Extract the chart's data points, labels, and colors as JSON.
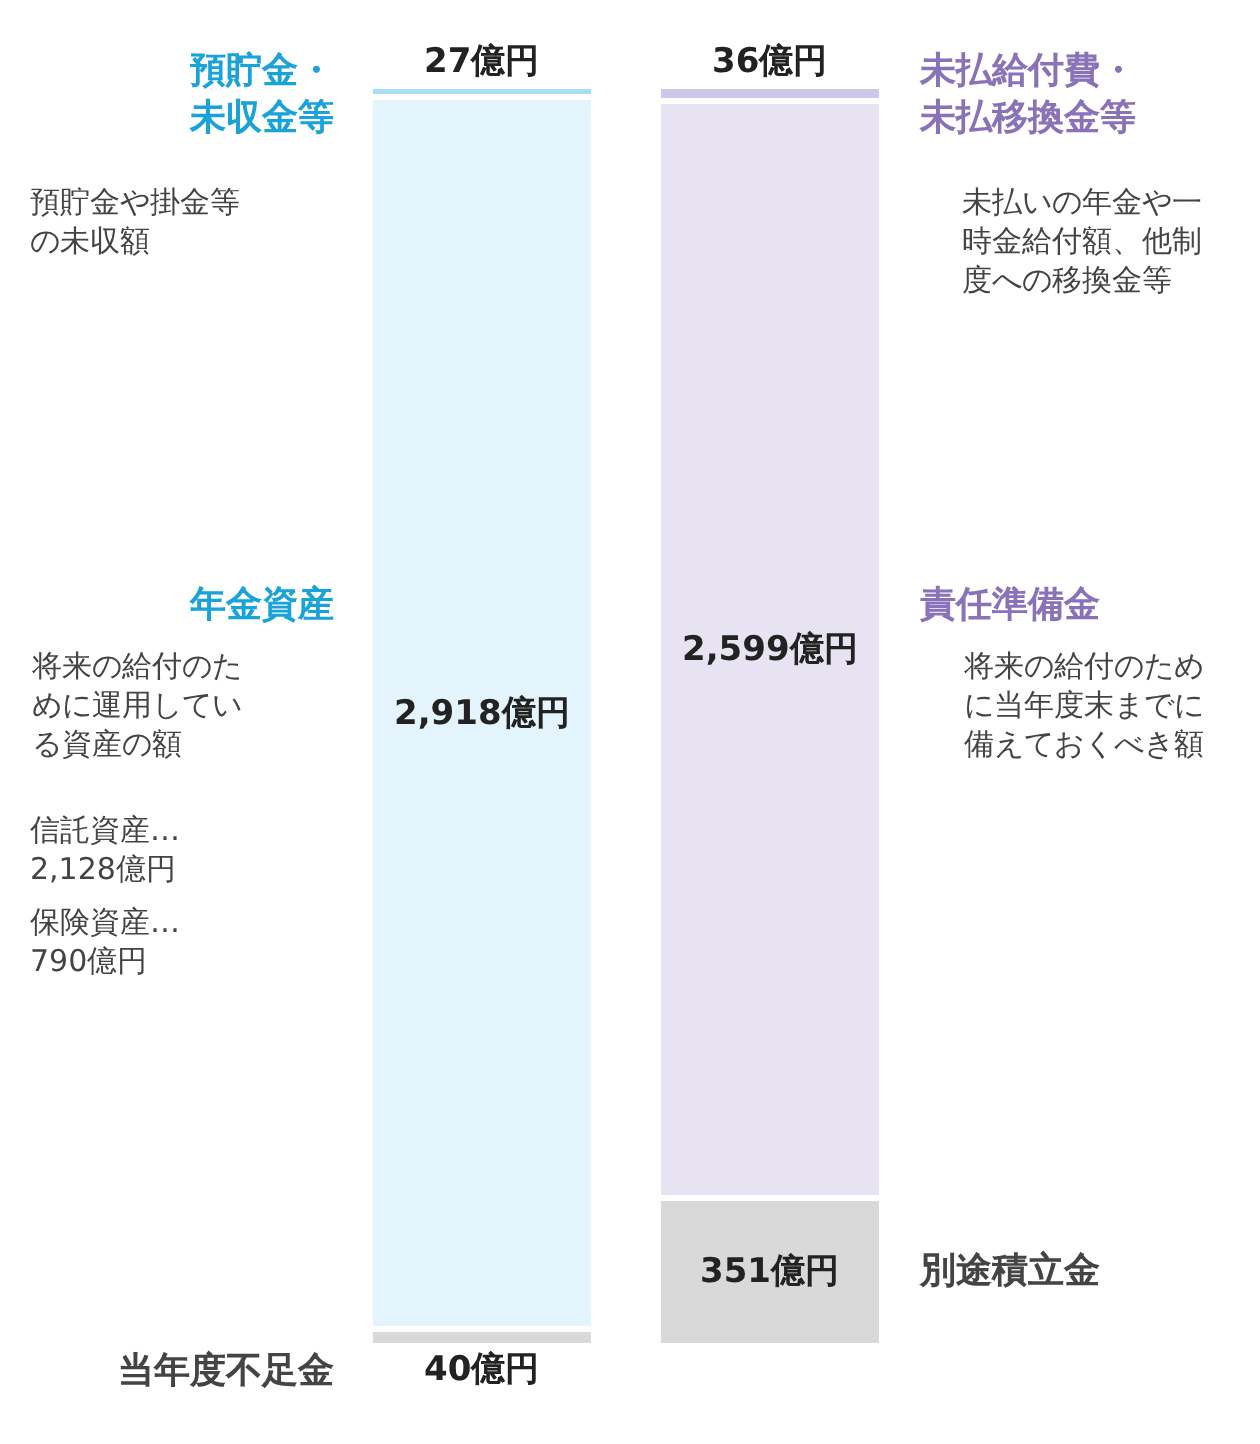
{
  "chart_data": {
    "type": "bar",
    "stacked": true,
    "legend": false,
    "tick_labels": false,
    "categories": [
      null,
      null
    ],
    "series": [
      {
        "name": "当年度不足金",
        "color": "#d9d9d9",
        "values": [
          40,
          null
        ],
        "value_labels": [
          "40億円",
          null
        ]
      },
      {
        "name": "別途積立金",
        "color": "#d9d9d9",
        "values": [
          null,
          351
        ],
        "value_labels": [
          null,
          "351億円"
        ]
      },
      {
        "name": "年金資産",
        "color": "#e4f4fc",
        "values": [
          2918,
          null
        ],
        "value_labels": [
          "2,918億円",
          null
        ]
      },
      {
        "name": "責任準備金",
        "color": "#e7e3f3",
        "values": [
          null,
          2599
        ],
        "value_labels": [
          null,
          "2,599億円"
        ]
      },
      {
        "name": "預貯金・未収金等",
        "color": "#a9dcf5",
        "values": [
          27,
          null
        ],
        "value_labels": [
          "27億円",
          null
        ]
      },
      {
        "name": "未払給付費・未払移換金等",
        "color": "#cfc7e9",
        "values": [
          null,
          36
        ],
        "value_labels": [
          null,
          "36億円"
        ]
      }
    ],
    "annotations": [
      "預貯金や掛金等の未収額",
      "将来の給付のために運用している資産の額",
      "信託資産…2,128億円",
      "保険資産…790億円",
      "未払いの年金や一時金給付額、他制度への移換金等",
      "将来の給付のために当年度末までに備えておくべき額"
    ]
  }
}
